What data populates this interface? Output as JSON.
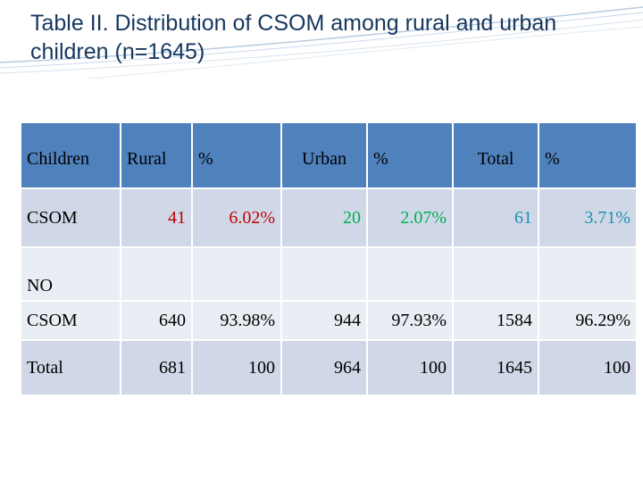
{
  "title": "Table II. Distribution of CSOM among rural and urban children (n=1645)",
  "table": {
    "headers": [
      "Children",
      "Rural",
      "%",
      "Urban",
      "%",
      "Total",
      "%"
    ],
    "rows": [
      {
        "label": "CSOM",
        "rural": "41",
        "rural_pct": "6.02%",
        "urban": "20",
        "urban_pct": "2.07%",
        "total": "61",
        "total_pct": "3.71%"
      },
      {
        "label_line1": "NO",
        "label_line2": "CSOM",
        "rural": "640",
        "rural_pct": "93.98%",
        "urban": "944",
        "urban_pct": "97.93%",
        "total": "1584",
        "total_pct": "96.29%"
      },
      {
        "label": "Total",
        "rural": "681",
        "rural_pct": "100",
        "urban": "964",
        "urban_pct": "100",
        "total": "1645",
        "total_pct": "100"
      }
    ]
  }
}
